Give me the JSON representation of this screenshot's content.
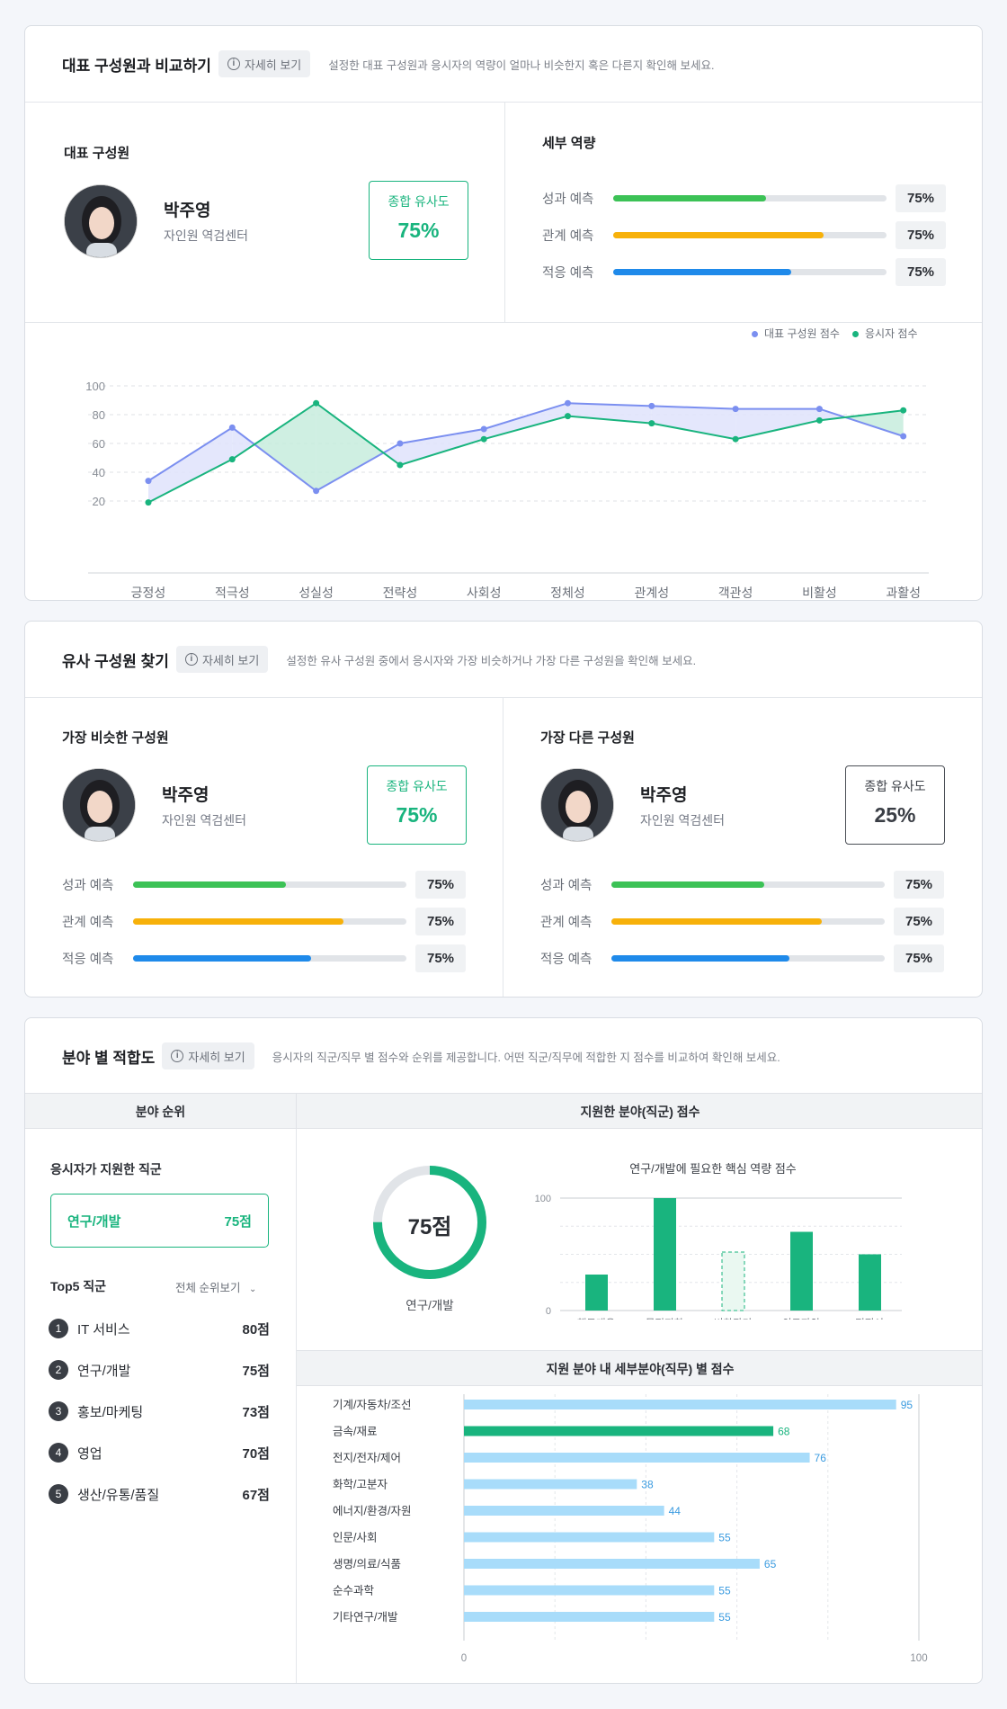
{
  "section1": {
    "title": "대표 구성원과 비교하기",
    "detail_label": "자세히 보기",
    "desc": "설정한 대표 구성원과 응시자의 역량이 얼마나 비슷한지 혹은 다른지 확인해 보세요.",
    "rep_heading": "대표 구성원",
    "person": {
      "name": "박주영",
      "dept": "자인원 역검센터"
    },
    "similarity": {
      "label": "종합 유사도",
      "value": "75%"
    },
    "detail_heading": "세부 역량",
    "bars": [
      {
        "label": "성과 예측",
        "value": "75%",
        "fill": 0.56,
        "color": "#3cc256"
      },
      {
        "label": "관계 예측",
        "value": "75%",
        "fill": 0.77,
        "color": "#f7b10a"
      },
      {
        "label": "적응 예측",
        "value": "75%",
        "fill": 0.65,
        "color": "#1f8aea"
      }
    ]
  },
  "chart_data": {
    "type": "line",
    "categories": [
      "긍정성",
      "적극성",
      "성실성",
      "전략성",
      "사회성",
      "정체성",
      "관계성",
      "객관성",
      "비활성",
      "과활성"
    ],
    "series": [
      {
        "name": "대표 구성원 점수",
        "color": "#7b8ff0",
        "values": [
          34,
          71,
          27,
          60,
          70,
          88,
          86,
          84,
          84,
          65
        ]
      },
      {
        "name": "응시자 점수",
        "color": "#19b47e",
        "values": [
          19,
          49,
          88,
          45,
          63,
          79,
          74,
          63,
          76,
          83
        ]
      }
    ],
    "yticks": [
      100,
      80,
      60,
      40,
      20
    ],
    "ylim": [
      0,
      100
    ],
    "legend": "top-right",
    "grid": true
  },
  "section2": {
    "title": "유사 구성원 찾기",
    "detail_label": "자세히 보기",
    "desc": "설정한 유사 구성원 중에서 응시자와 가장 비슷하거나 가장 다른 구성원을 확인해 보세요.",
    "similar": {
      "heading": "가장 비슷한 구성원",
      "name": "박주영",
      "dept": "자인원 역검센터",
      "sim_label": "종합 유사도",
      "sim_value": "75%",
      "bars": [
        {
          "label": "성과 예측",
          "value": "75%",
          "fill": 0.56,
          "color": "#3cc256"
        },
        {
          "label": "관계 예측",
          "value": "75%",
          "fill": 0.77,
          "color": "#f7b10a"
        },
        {
          "label": "적응 예측",
          "value": "75%",
          "fill": 0.65,
          "color": "#1f8aea"
        }
      ]
    },
    "different": {
      "heading": "가장 다른 구성원",
      "name": "박주영",
      "dept": "자인원 역검센터",
      "sim_label": "종합 유사도",
      "sim_value": "25%",
      "bars": [
        {
          "label": "성과 예측",
          "value": "75%",
          "fill": 0.56,
          "color": "#3cc256"
        },
        {
          "label": "관계 예측",
          "value": "75%",
          "fill": 0.77,
          "color": "#f7b10a"
        },
        {
          "label": "적응 예측",
          "value": "75%",
          "fill": 0.65,
          "color": "#1f8aea"
        }
      ]
    }
  },
  "section3": {
    "title": "분야 별 적합도",
    "detail_label": "자세히 보기",
    "desc": "응시자의 직군/직무 별 점수와 순위를 제공합니다. 어떤 직군/직무에 적합한 지 점수를 비교하여 확인해 보세요.",
    "col1_header": "분야 순위",
    "col2_header": "지원한 분야(직군) 점수",
    "applied_heading": "응시자가 지원한 직군",
    "applied": {
      "name": "연구/개발",
      "score": "75점"
    },
    "top5_heading": "Top5 직군",
    "all_rank_label": "전체 순위보기",
    "top5": [
      {
        "rank": "1",
        "name": "IT 서비스",
        "score": "80점"
      },
      {
        "rank": "2",
        "name": "연구/개발",
        "score": "75점"
      },
      {
        "rank": "3",
        "name": "홍보/마케팅",
        "score": "73점"
      },
      {
        "rank": "4",
        "name": "영업",
        "score": "70점"
      },
      {
        "rank": "5",
        "name": "생산/유통/품질",
        "score": "67점"
      }
    ],
    "donut": {
      "value": "75점",
      "fraction": 0.75,
      "label": "연구/개발"
    },
    "core_chart": {
      "title": "연구/개발에 필요한 핵심 역량 점수",
      "categories": [
        "행동대응",
        "목적지향",
        "변화관리",
        "의도파악",
        "정직성"
      ],
      "values": [
        32,
        100,
        52,
        70,
        50
      ],
      "dashed_index": 2,
      "ymax_label": "100",
      "ymin_label": "0"
    },
    "sub_header": "지원 분야 내 세부분야(직무) 별 점수",
    "sub_chart": {
      "categories": [
        "기계/자동차/조선",
        "금속/재료",
        "전지/전자/제어",
        "화학/고분자",
        "에너지/환경/자원",
        "인문/사회",
        "생명/의료/식품",
        "순수과학",
        "기타연구/개발"
      ],
      "values": [
        95,
        68,
        76,
        38,
        44,
        55,
        65,
        55,
        55
      ],
      "highlight_index": 1,
      "x_min_label": "0",
      "x_max_label": "100"
    }
  }
}
